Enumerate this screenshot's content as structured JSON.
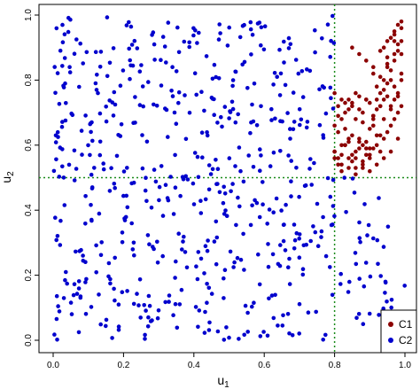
{
  "chart_data": {
    "type": "scatter",
    "title": "",
    "xlabel": "u",
    "xlabel_sub": "1",
    "ylabel": "u",
    "ylabel_sub": "2",
    "xlim": [
      0,
      1
    ],
    "ylim": [
      0,
      1
    ],
    "xticks": [
      "0.0",
      "0.2",
      "0.4",
      "0.6",
      "0.8",
      "1.0"
    ],
    "yticks": [
      "0.0",
      "0.2",
      "0.4",
      "0.6",
      "0.8",
      "1.0"
    ],
    "grid": false,
    "legend_placement": "bottom-right",
    "reference_lines": {
      "x": 0.8,
      "y": 0.5,
      "color": "#1a8a1a"
    },
    "series": [
      {
        "name": "C1",
        "color": "#8b0000",
        "x": [
          0.8,
          0.81,
          0.82,
          0.83,
          0.84,
          0.85,
          0.86,
          0.87,
          0.88,
          0.89,
          0.9,
          0.91,
          0.92,
          0.93,
          0.94,
          0.95,
          0.96,
          0.97,
          0.98,
          0.99,
          0.81,
          0.83,
          0.85,
          0.87,
          0.89,
          0.91,
          0.93,
          0.95,
          0.97,
          0.99,
          0.82,
          0.84,
          0.86,
          0.88,
          0.9,
          0.92,
          0.94,
          0.96,
          0.98,
          0.8,
          0.82,
          0.84,
          0.86,
          0.88,
          0.9,
          0.92,
          0.94,
          0.96,
          0.98,
          0.81,
          0.85,
          0.89,
          0.93,
          0.97,
          0.83,
          0.87,
          0.91,
          0.95,
          0.99,
          0.8,
          0.82,
          0.84,
          0.86,
          0.88,
          0.9,
          0.92,
          0.94,
          0.81,
          0.83,
          0.85,
          0.87,
          0.89,
          0.91,
          0.93,
          0.95,
          0.97,
          0.99,
          0.8,
          0.82,
          0.84,
          0.86,
          0.88,
          0.9,
          0.92,
          0.94,
          0.96,
          0.98,
          0.81,
          0.83,
          0.85,
          0.87,
          0.89,
          0.91,
          0.93,
          0.95,
          0.97,
          0.8,
          0.82,
          0.84,
          0.86,
          0.88,
          0.9,
          0.92,
          0.94,
          0.96,
          0.98,
          0.85,
          0.87,
          0.89,
          0.91,
          0.93,
          0.95,
          0.97,
          0.99,
          0.94,
          0.96,
          0.98,
          0.99,
          0.97,
          0.95,
          0.93,
          0.91,
          0.96,
          0.98,
          0.99,
          0.97
        ],
        "y": [
          0.58,
          0.56,
          0.57,
          0.6,
          0.62,
          0.55,
          0.58,
          0.61,
          0.54,
          0.57,
          0.56,
          0.59,
          0.6,
          0.58,
          0.62,
          0.64,
          0.66,
          0.68,
          0.7,
          0.72,
          0.72,
          0.7,
          0.73,
          0.71,
          0.74,
          0.69,
          0.72,
          0.75,
          0.78,
          0.8,
          0.52,
          0.53,
          0.51,
          0.55,
          0.52,
          0.54,
          0.56,
          0.58,
          0.62,
          0.66,
          0.68,
          0.74,
          0.76,
          0.7,
          0.73,
          0.71,
          0.68,
          0.72,
          0.76,
          0.54,
          0.57,
          0.59,
          0.63,
          0.74,
          0.65,
          0.62,
          0.66,
          0.79,
          0.82,
          0.76,
          0.74,
          0.71,
          0.68,
          0.67,
          0.65,
          0.78,
          0.8,
          0.64,
          0.6,
          0.63,
          0.59,
          0.61,
          0.69,
          0.72,
          0.84,
          0.86,
          0.88,
          0.56,
          0.54,
          0.61,
          0.56,
          0.6,
          0.59,
          0.63,
          0.74,
          0.83,
          0.89,
          0.69,
          0.73,
          0.72,
          0.75,
          0.74,
          0.68,
          0.81,
          0.85,
          0.92,
          0.58,
          0.6,
          0.56,
          0.53,
          0.53,
          0.57,
          0.74,
          0.77,
          0.8,
          0.91,
          0.9,
          0.88,
          0.86,
          0.82,
          0.76,
          0.87,
          0.94,
          0.96,
          0.9,
          0.93,
          0.97,
          0.98,
          0.95,
          0.92,
          0.89,
          0.84,
          0.71,
          0.75,
          0.92,
          0.88
        ],
        "marker": "circle"
      },
      {
        "name": "C2",
        "color": "#0000cd",
        "generated_count": 620,
        "region": "outside the quadrant x>0.8 and y>0.5",
        "marker": "circle"
      }
    ]
  },
  "legend": {
    "items": [
      {
        "label": "C1",
        "color": "#8b0000"
      },
      {
        "label": "C2",
        "color": "#0000cd"
      }
    ]
  },
  "labels": {
    "x_main": "u",
    "x_sub": "1",
    "y_main": "u",
    "y_sub": "2"
  }
}
